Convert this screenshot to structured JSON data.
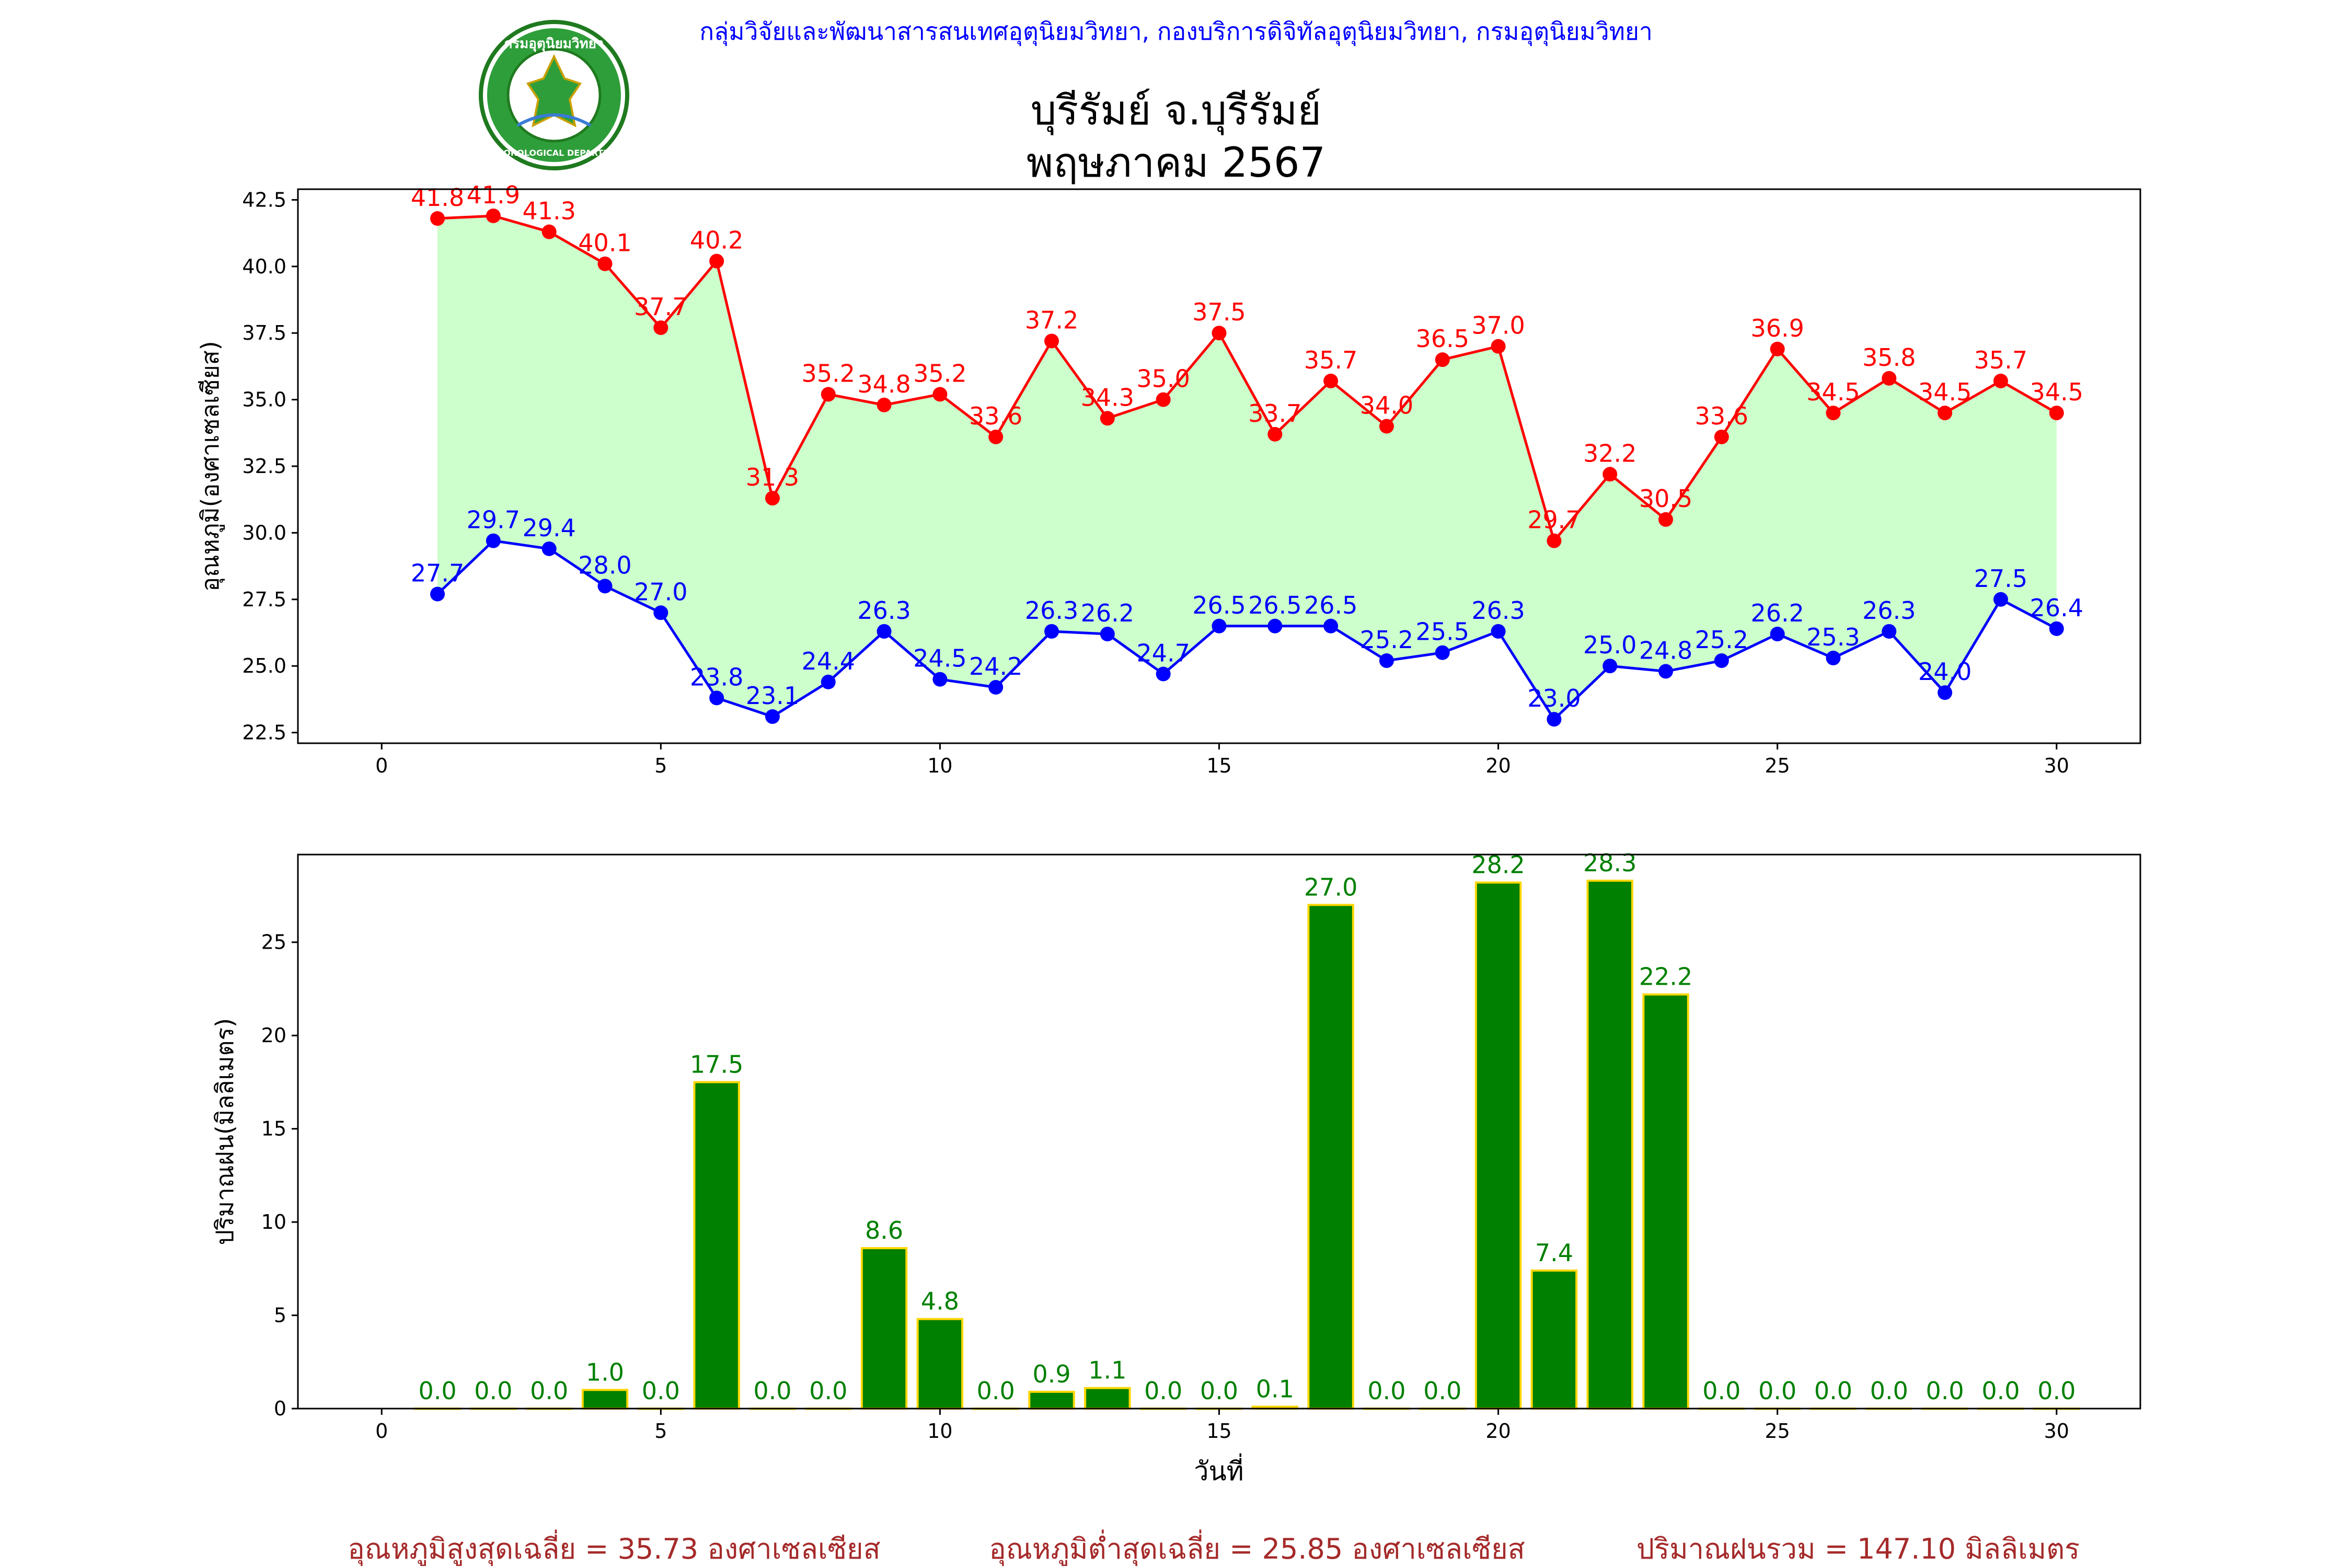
{
  "header": {
    "org_line": "กลุ่มวิจัยและพัฒนาสารสนเทศอุตุนิยมวิทยา, กองบริการดิจิทัลอุตุนิยมวิทยา, กรมอุตุนิยมวิทยา",
    "station_title": "บุรีรัมย์ จ.บุรีรัมย์",
    "period_title": "พฤษภาคม 2567",
    "logo_top_text": "กรมอุตุนิยมวิทยา",
    "logo_bottom_text": "METEOROLOGICAL DEPARTMENT"
  },
  "colors": {
    "max_line": "#ff0000",
    "min_line": "#0000ff",
    "fill": "#ccffcc",
    "bar_fill": "#008000",
    "bar_edge": "#ffd700",
    "rain_label": "#008000",
    "summary": "#a52a2a",
    "header_blue": "#0000ff"
  },
  "summary": {
    "avg_max": "อุณหภูมิสูงสุดเฉลี่ย = 35.73 องศาเซลเซียส",
    "avg_min": "อุณหภูมิต่ำสุดเฉลี่ย = 25.85 องศาเซลเซียส",
    "total_rain": "ปริมาณฝนรวม = 147.10 มิลลิเมตร"
  },
  "chart_data": [
    {
      "type": "line",
      "ylabel": "อุณหภูมิ(องศาเซลเซียส)",
      "xlim": [
        -1.5,
        31.5
      ],
      "ylim": [
        22.1,
        42.9
      ],
      "xticks": [
        0,
        5,
        10,
        15,
        20,
        25,
        30
      ],
      "yticks": [
        "22.5",
        "25.0",
        "27.5",
        "30.0",
        "32.5",
        "35.0",
        "37.5",
        "40.0",
        "42.5"
      ],
      "x": [
        1,
        2,
        3,
        4,
        5,
        6,
        7,
        8,
        9,
        10,
        11,
        12,
        13,
        14,
        15,
        16,
        17,
        18,
        19,
        20,
        21,
        22,
        23,
        24,
        25,
        26,
        27,
        28,
        29,
        30
      ],
      "series": [
        {
          "key": "max",
          "values": [
            41.8,
            41.9,
            41.3,
            40.1,
            37.7,
            40.2,
            31.3,
            35.2,
            34.8,
            35.2,
            33.6,
            37.2,
            34.3,
            35.0,
            37.5,
            33.7,
            35.7,
            34.0,
            36.5,
            37.0,
            29.7,
            32.2,
            30.5,
            33.6,
            36.9,
            34.5,
            35.8,
            34.5,
            35.7,
            34.5
          ]
        },
        {
          "key": "min",
          "values": [
            27.7,
            29.7,
            29.4,
            28.0,
            27.0,
            23.8,
            23.1,
            24.4,
            26.3,
            24.5,
            24.2,
            26.3,
            26.2,
            24.7,
            26.5,
            26.5,
            26.5,
            25.2,
            25.5,
            26.3,
            23.0,
            25.0,
            24.8,
            25.2,
            26.2,
            25.3,
            26.3,
            24.0,
            27.5,
            26.4
          ]
        }
      ],
      "grid": false,
      "fill_between": true
    },
    {
      "type": "bar",
      "ylabel": "ปริมาณฝน(มิลลิเมตร)",
      "xlabel": "วันที่",
      "xlim": [
        -1.5,
        31.5
      ],
      "ylim": [
        0,
        29.7
      ],
      "xticks": [
        0,
        5,
        10,
        15,
        20,
        25,
        30
      ],
      "yticks": [
        0,
        5,
        10,
        15,
        20,
        25
      ],
      "categories": [
        1,
        2,
        3,
        4,
        5,
        6,
        7,
        8,
        9,
        10,
        11,
        12,
        13,
        14,
        15,
        16,
        17,
        18,
        19,
        20,
        21,
        22,
        23,
        24,
        25,
        26,
        27,
        28,
        29,
        30
      ],
      "values": [
        0.0,
        0.0,
        0.0,
        1.0,
        0.0,
        17.5,
        0.0,
        0.0,
        8.6,
        4.8,
        0.0,
        0.9,
        1.1,
        0.0,
        0.0,
        0.1,
        27.0,
        0.0,
        0.0,
        28.2,
        7.4,
        28.3,
        22.2,
        0.0,
        0.0,
        0.0,
        0.0,
        0.0,
        0.0,
        0.0
      ],
      "grid": false
    }
  ]
}
